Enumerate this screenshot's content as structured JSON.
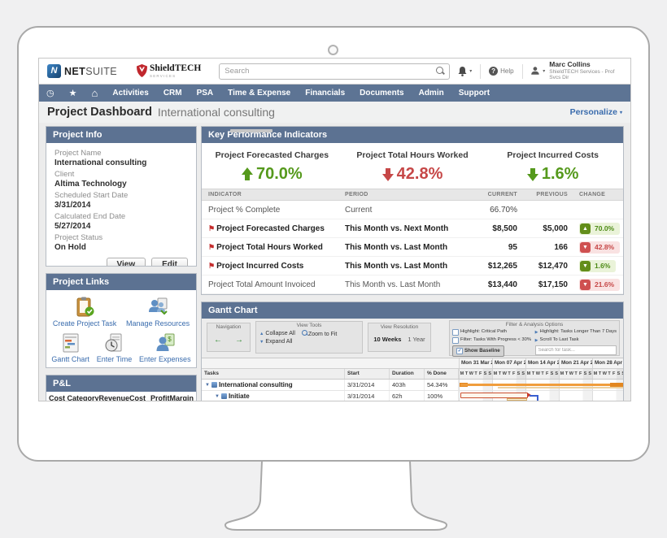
{
  "icons": {
    "caret_down": "▾",
    "clock": "◷",
    "star": "★",
    "home": "⌂",
    "flag": "⚑",
    "up_triangle": "▲",
    "down_triangle": "▼",
    "play": "▶",
    "arrow_left": "←",
    "arrow_right": "→",
    "check": "✓",
    "question": "?"
  },
  "brand": {
    "netsuite_mark": "N",
    "netsuite_bold": "NET",
    "netsuite_light": "SUITE",
    "shieldtech": "ShieldTECH",
    "shieldtech_sub": "SERVICES"
  },
  "header": {
    "search_placeholder": "Search",
    "help": "Help",
    "user_name": "Marc Collins",
    "user_role": "ShieldTECH Services - Prof Svcs Dir"
  },
  "nav": {
    "items": [
      "Activities",
      "CRM",
      "PSA",
      "Time & Expense",
      "Financials",
      "Documents",
      "Admin",
      "Support"
    ]
  },
  "page": {
    "title": "Project Dashboard",
    "subtitle": "International consulting",
    "personalize": "Personalize"
  },
  "project_info": {
    "title": "Project Info",
    "fields": [
      {
        "label": "Project Name",
        "value": "International consulting"
      },
      {
        "label": "Client",
        "value": "Altima Technology"
      },
      {
        "label": "Scheduled Start Date",
        "value": "3/31/2014"
      },
      {
        "label": "Calculated End Date",
        "value": "5/27/2014"
      },
      {
        "label": "Project Status",
        "value": "On Hold"
      }
    ],
    "view_button": "View",
    "edit_button": "Edit"
  },
  "kpi": {
    "title": "Key Performance Indicators",
    "highlights": [
      {
        "label": "Project Forecasted Charges",
        "value": "70.0%",
        "direction": "up",
        "tone": "good"
      },
      {
        "label": "Project Total Hours Worked",
        "value": "42.8%",
        "direction": "down",
        "tone": "bad"
      },
      {
        "label": "Project Incurred Costs",
        "value": "1.6%",
        "direction": "down",
        "tone": "good"
      }
    ],
    "table": {
      "headers": [
        "INDICATOR",
        "PERIOD",
        "CURRENT",
        "PREVIOUS",
        "CHANGE"
      ],
      "rows": [
        {
          "indicator": "Project % Complete",
          "period": "Current",
          "current": "66.70%",
          "previous": "",
          "change_value": ""
        },
        {
          "indicator": "Project Forecasted Charges",
          "period": "This Month vs. Next Month",
          "current": "$8,500",
          "previous": "$5,000",
          "change_value": "70.0%"
        },
        {
          "indicator": "Project Total Hours Worked",
          "period": "This Month vs. Last Month",
          "current": "95",
          "previous": "166",
          "change_value": "42.8%"
        },
        {
          "indicator": "Project Incurred Costs",
          "period": "This Month vs. Last Month",
          "current": "$12,265",
          "previous": "$12,470",
          "change_value": "1.6%"
        },
        {
          "indicator": "Project Total Amount Invoiced",
          "period": "This Month vs. Last Month",
          "current": "$13,440",
          "previous": "$17,150",
          "change_value": "21.6%"
        }
      ]
    }
  },
  "project_links": {
    "title": "Project Links",
    "links": [
      "Create Project Task",
      "Manage Resources",
      "Gantt Chart",
      "Enter Time",
      "Enter Expenses"
    ]
  },
  "pnl": {
    "title": "P&L",
    "columns": [
      "Cost Category",
      "Revenue",
      "Cost",
      "Profit",
      "Margin"
    ]
  },
  "gantt": {
    "title": "Gantt Chart",
    "toolbar": {
      "navigation_label": "Navigation",
      "view_tools_label": "View Tools",
      "collapse_all": "Collapse All",
      "zoom_to_fit": "Zoom to Fit",
      "expand_all": "Expand All",
      "view_resolution_label": "View Resolution",
      "res_10_weeks": "10 Weeks",
      "res_1_year": "1 Year",
      "filter_label": "Filter & Analysis Options",
      "opt_critical_path": "Highlight: Critical Path",
      "opt_tasks_longer": "Highlight: Tasks Longer Than 7 Days",
      "opt_filter_progress": "Filter: Tasks With Progress < 30%",
      "opt_scroll_last": "Scroll To Last Task",
      "show_baseline": "Show Baseline",
      "search_placeholder": "Search for task..."
    },
    "table": {
      "columns": [
        "Tasks",
        "Start",
        "Duration",
        "% Done"
      ],
      "weeks": [
        "Mon 31 Mar 2014",
        "Mon 07 Apr 2014",
        "Mon 14 Apr 2014",
        "Mon 21 Apr 2014",
        "Mon 28 Apr 2014"
      ],
      "day_letters": [
        "M",
        "T",
        "W",
        "T",
        "F",
        "S",
        "S"
      ],
      "rows": [
        {
          "task": "International consulting",
          "start": "3/31/2014",
          "duration": "403h",
          "done": "54.34%"
        },
        {
          "task": "Initiate",
          "start": "3/31/2014",
          "duration": "62h",
          "done": "100%"
        }
      ]
    }
  },
  "colors": {
    "accent_slate": "#5c7292",
    "good_green": "#55991c",
    "bad_red": "#c64747",
    "gantt_orange": "#f09d3c",
    "link_blue": "#3a6cad"
  }
}
